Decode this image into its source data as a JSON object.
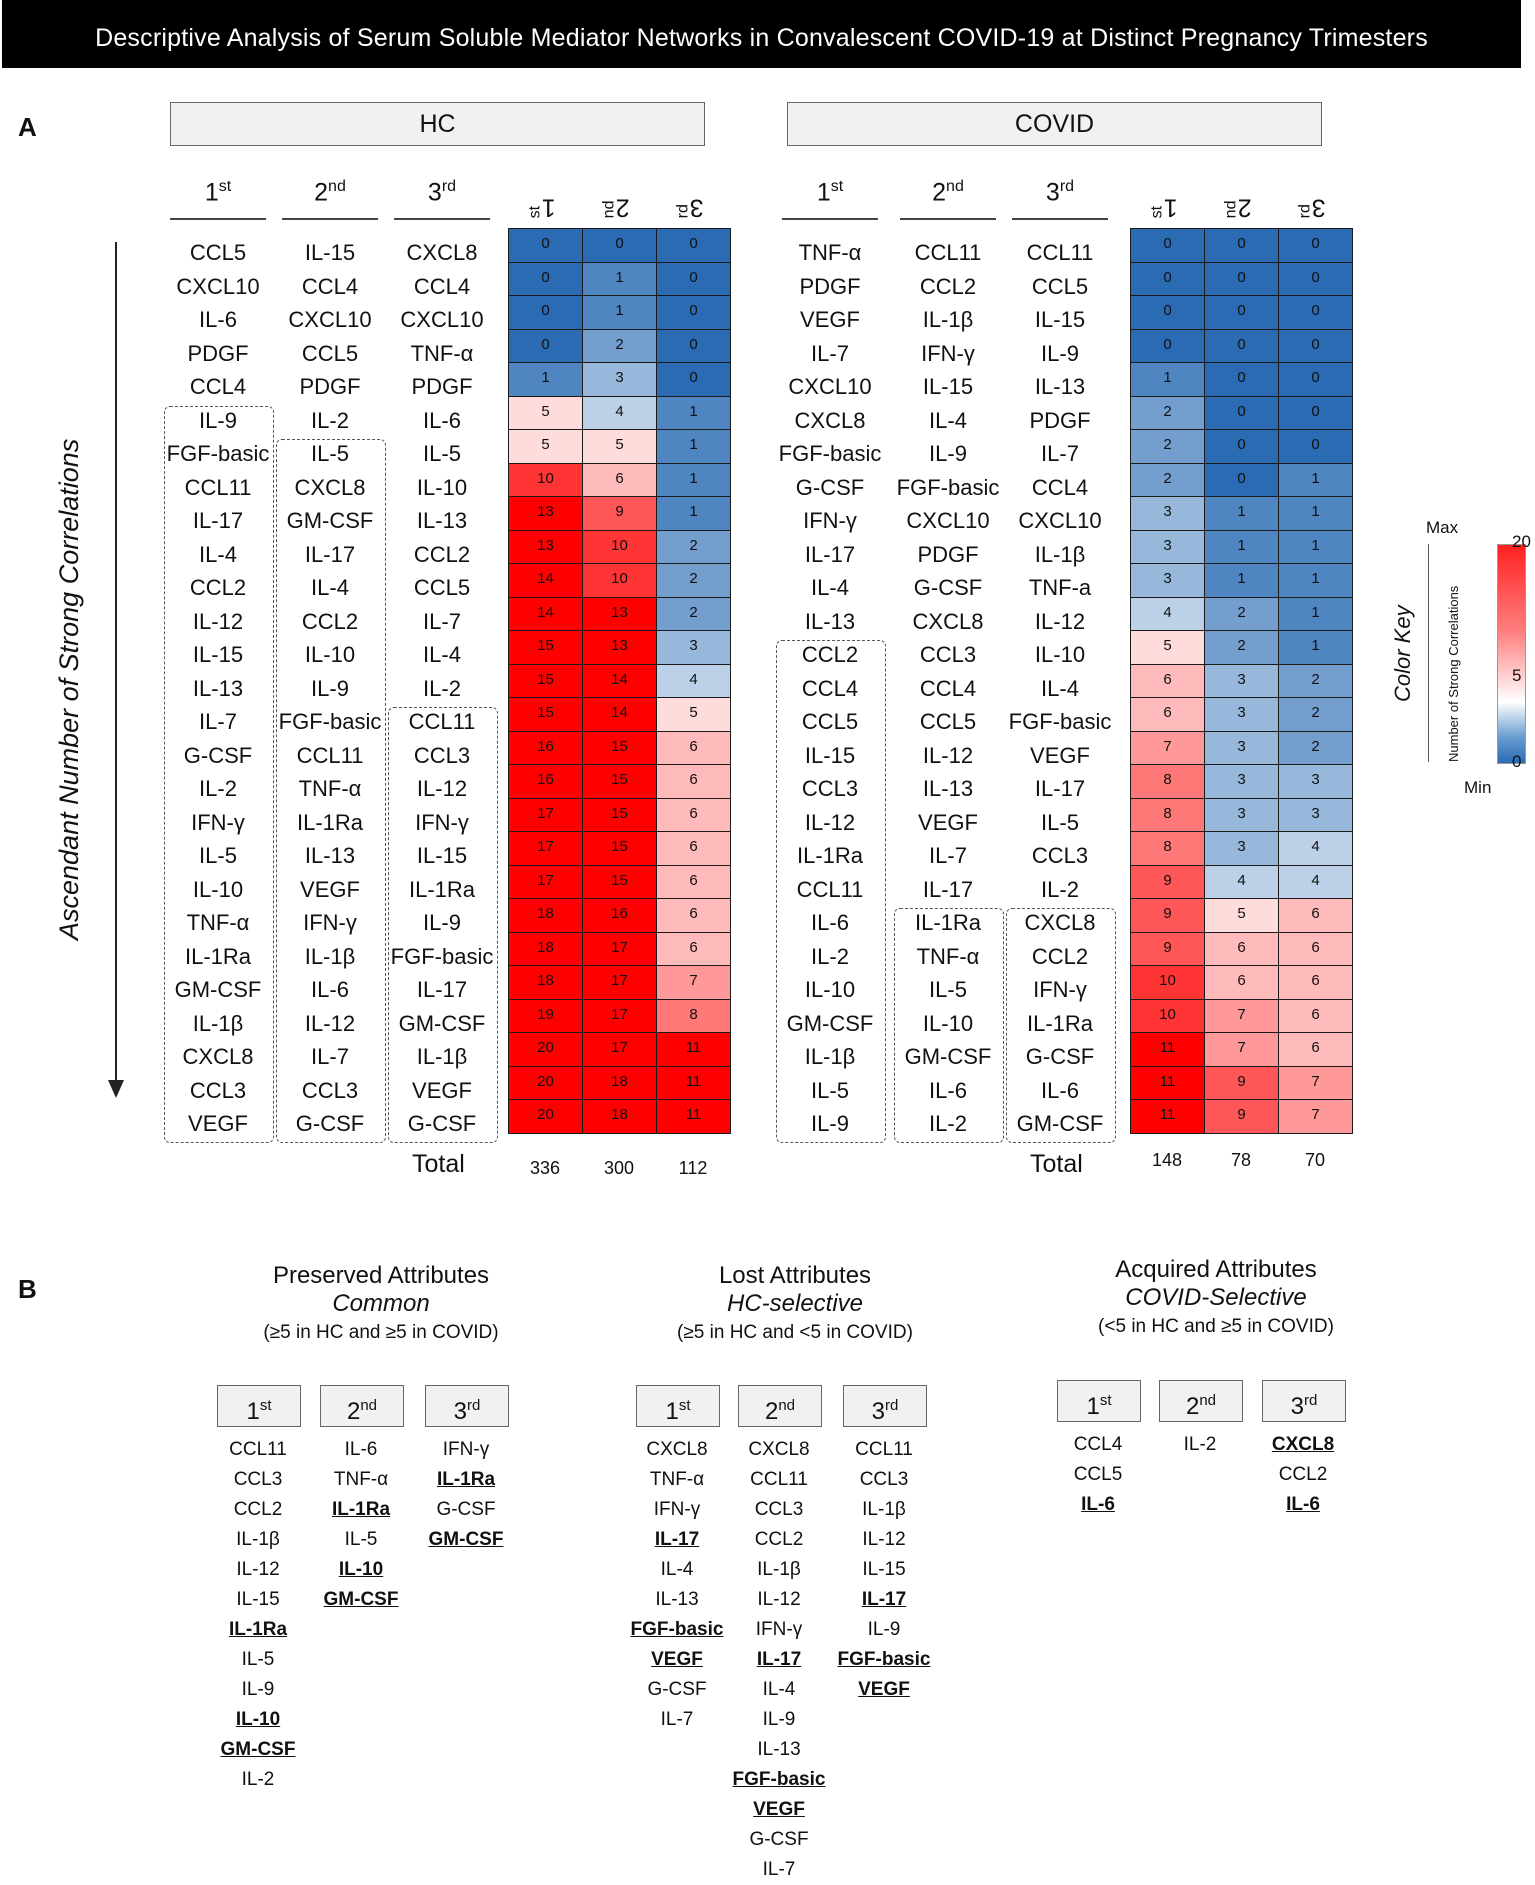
{
  "title": "Descriptive Analysis of Serum Soluble Mediator Networks  in Convalescent COVID-19 at Distinct Pregnancy Trimesters",
  "panel_a": {
    "letter": "A",
    "y_axis_label": "Ascendant Number of Strong Correlations",
    "hc": {
      "label": "HC",
      "trimesters": [
        {
          "ord": "1",
          "sup": "st"
        },
        {
          "ord": "2",
          "sup": "nd"
        },
        {
          "ord": "3",
          "sup": "rd"
        }
      ],
      "col1": [
        "CCL5",
        "CXCL10",
        "IL-6",
        "PDGF",
        "CCL4",
        "IL-9",
        "FGF-basic",
        "CCL11",
        "IL-17",
        "IL-4",
        "CCL2",
        "IL-12",
        "IL-15",
        "IL-13",
        "IL-7",
        "G-CSF",
        "IL-2",
        "IFN-γ",
        "IL-5",
        "IL-10",
        "TNF-α",
        "IL-1Ra",
        "GM-CSF",
        "IL-1β",
        "CXCL8",
        "CCL3",
        "VEGF"
      ],
      "col2": [
        "IL-15",
        "CCL4",
        "CXCL10",
        "CCL5",
        "PDGF",
        "IL-2",
        "IL-5",
        "CXCL8",
        "GM-CSF",
        "IL-17",
        "IL-4",
        "CCL2",
        "IL-10",
        "IL-9",
        "FGF-basic",
        "CCL11",
        "TNF-α",
        "IL-1Ra",
        "IL-13",
        "VEGF",
        "IFN-γ",
        "IL-1β",
        "IL-6",
        "IL-12",
        "IL-7",
        "CCL3",
        "G-CSF"
      ],
      "col3": [
        "CXCL8",
        "CCL4",
        "CXCL10",
        "TNF-α",
        "PDGF",
        "IL-6",
        "IL-5",
        "IL-10",
        "IL-13",
        "CCL2",
        "CCL5",
        "IL-7",
        "IL-4",
        "IL-2",
        "CCL11",
        "CCL3",
        "IL-12",
        "IFN-γ",
        "IL-15",
        "IL-1Ra",
        "IL-9",
        "FGF-basic",
        "IL-17",
        "GM-CSF",
        "IL-1β",
        "VEGF",
        "G-CSF"
      ],
      "heat1": [
        0,
        0,
        0,
        0,
        1,
        5,
        5,
        10,
        13,
        13,
        14,
        14,
        15,
        15,
        15,
        16,
        16,
        17,
        17,
        17,
        18,
        18,
        18,
        19,
        20,
        20,
        20
      ],
      "heat2": [
        0,
        1,
        1,
        2,
        3,
        4,
        5,
        6,
        9,
        10,
        10,
        13,
        13,
        14,
        14,
        15,
        15,
        15,
        15,
        15,
        16,
        17,
        17,
        17,
        17,
        18,
        18
      ],
      "heat3": [
        0,
        0,
        0,
        0,
        0,
        1,
        1,
        1,
        1,
        2,
        2,
        2,
        3,
        4,
        5,
        6,
        6,
        6,
        6,
        6,
        6,
        6,
        7,
        8,
        11,
        11,
        11
      ],
      "total_label": "Total",
      "totals": [
        "336",
        "300",
        "112"
      ]
    },
    "covid": {
      "label": "COVID",
      "trimesters": [
        {
          "ord": "1",
          "sup": "st"
        },
        {
          "ord": "2",
          "sup": "nd"
        },
        {
          "ord": "3",
          "sup": "rd"
        }
      ],
      "col1": [
        "TNF-α",
        "PDGF",
        "VEGF",
        "IL-7",
        "CXCL10",
        "CXCL8",
        "FGF-basic",
        "G-CSF",
        "IFN-γ",
        "IL-17",
        "IL-4",
        "IL-13",
        "CCL2",
        "CCL4",
        "CCL5",
        "IL-15",
        "CCL3",
        "IL-12",
        "IL-1Ra",
        "CCL11",
        "IL-6",
        "IL-2",
        "IL-10",
        "GM-CSF",
        "IL-1β",
        "IL-5",
        "IL-9"
      ],
      "col2": [
        "CCL11",
        "CCL2",
        "IL-1β",
        "IFN-γ",
        "IL-15",
        "IL-4",
        "IL-9",
        "FGF-basic",
        "CXCL10",
        "PDGF",
        "G-CSF",
        "CXCL8",
        "CCL3",
        "CCL4",
        "CCL5",
        "IL-12",
        "IL-13",
        "VEGF",
        "IL-7",
        "IL-17",
        "IL-1Ra",
        "TNF-α",
        "IL-5",
        "IL-10",
        "GM-CSF",
        "IL-6",
        "IL-2"
      ],
      "col3": [
        "CCL11",
        "CCL5",
        "IL-15",
        "IL-9",
        "IL-13",
        "PDGF",
        "IL-7",
        "CCL4",
        "CXCL10",
        "IL-1β",
        "TNF-a",
        "IL-12",
        "IL-10",
        "IL-4",
        "FGF-basic",
        "VEGF",
        "IL-17",
        "IL-5",
        "CCL3",
        "IL-2",
        "CXCL8",
        "CCL2",
        "IFN-γ",
        "IL-1Ra",
        "G-CSF",
        "IL-6",
        "GM-CSF"
      ],
      "heat1": [
        0,
        0,
        0,
        0,
        1,
        2,
        2,
        2,
        3,
        3,
        3,
        4,
        5,
        6,
        6,
        7,
        8,
        8,
        8,
        9,
        9,
        9,
        10,
        10,
        11,
        11,
        11
      ],
      "heat2": [
        0,
        0,
        0,
        0,
        0,
        0,
        0,
        0,
        1,
        1,
        1,
        2,
        2,
        3,
        3,
        3,
        3,
        3,
        3,
        4,
        5,
        6,
        6,
        7,
        7,
        9,
        9
      ],
      "heat3": [
        0,
        0,
        0,
        0,
        0,
        0,
        0,
        1,
        1,
        1,
        1,
        1,
        1,
        2,
        2,
        2,
        3,
        3,
        4,
        4,
        6,
        6,
        6,
        6,
        6,
        7,
        7
      ],
      "total_label": "Total",
      "totals": [
        "148",
        "78",
        "70"
      ]
    },
    "color_key": {
      "title": "Color Key",
      "axis_label": "Number of Strong Correlations",
      "max_label": "Max",
      "min_label": "Min",
      "tick_top": "20",
      "tick_mid": "5",
      "tick_bottom": "0",
      "color_max": "#ff0000",
      "color_mid": "#ffffff",
      "color_min": "#2a6bb4"
    }
  },
  "panel_b": {
    "letter": "B",
    "groups": [
      {
        "title": "Preserved Attributes",
        "subtitle": "Common",
        "criteria": "(≥5 in HC and ≥5 in COVID)",
        "columns": [
          {
            "ord": "1",
            "sup": "st",
            "items": [
              {
                "t": "CCL11",
                "b": false
              },
              {
                "t": "CCL3",
                "b": false
              },
              {
                "t": "CCL2",
                "b": false
              },
              {
                "t": "IL-1β",
                "b": false
              },
              {
                "t": "IL-12",
                "b": false
              },
              {
                "t": "IL-15",
                "b": false
              },
              {
                "t": "IL-1Ra",
                "b": true
              },
              {
                "t": "IL-5",
                "b": false
              },
              {
                "t": "IL-9",
                "b": false
              },
              {
                "t": "IL-10",
                "b": true
              },
              {
                "t": "GM-CSF",
                "b": true
              },
              {
                "t": "IL-2",
                "b": false
              }
            ]
          },
          {
            "ord": "2",
            "sup": "nd",
            "items": [
              {
                "t": "IL-6",
                "b": false
              },
              {
                "t": "TNF-α",
                "b": false
              },
              {
                "t": "IL-1Ra",
                "b": true
              },
              {
                "t": "IL-5",
                "b": false
              },
              {
                "t": "IL-10",
                "b": true
              },
              {
                "t": "GM-CSF",
                "b": true
              }
            ]
          },
          {
            "ord": "3",
            "sup": "rd",
            "items": [
              {
                "t": "IFN-γ",
                "b": false
              },
              {
                "t": "IL-1Ra",
                "b": true
              },
              {
                "t": "G-CSF",
                "b": false
              },
              {
                "t": "GM-CSF",
                "b": true
              }
            ]
          }
        ]
      },
      {
        "title": "Lost Attributes",
        "subtitle": "HC-selective",
        "criteria": "(≥5 in HC and <5 in COVID)",
        "columns": [
          {
            "ord": "1",
            "sup": "st",
            "items": [
              {
                "t": "CXCL8",
                "b": false
              },
              {
                "t": "TNF-α",
                "b": false
              },
              {
                "t": "IFN-γ",
                "b": false
              },
              {
                "t": "IL-17",
                "b": true
              },
              {
                "t": "IL-4",
                "b": false
              },
              {
                "t": "IL-13",
                "b": false
              },
              {
                "t": "FGF-basic",
                "b": true
              },
              {
                "t": "VEGF",
                "b": true
              },
              {
                "t": "G-CSF",
                "b": false
              },
              {
                "t": "IL-7",
                "b": false
              }
            ]
          },
          {
            "ord": "2",
            "sup": "nd",
            "items": [
              {
                "t": "CXCL8",
                "b": false
              },
              {
                "t": "CCL11",
                "b": false
              },
              {
                "t": "CCL3",
                "b": false
              },
              {
                "t": "CCL2",
                "b": false
              },
              {
                "t": "IL-1β",
                "b": false
              },
              {
                "t": "IL-12",
                "b": false
              },
              {
                "t": "IFN-γ",
                "b": false
              },
              {
                "t": "IL-17",
                "b": true
              },
              {
                "t": "IL-4",
                "b": false
              },
              {
                "t": "IL-9",
                "b": false
              },
              {
                "t": "IL-13",
                "b": false
              },
              {
                "t": "FGF-basic",
                "b": true
              },
              {
                "t": "VEGF",
                "b": true
              },
              {
                "t": "G-CSF",
                "b": false
              },
              {
                "t": "IL-7",
                "b": false
              }
            ]
          },
          {
            "ord": "3",
            "sup": "rd",
            "items": [
              {
                "t": "CCL11",
                "b": false
              },
              {
                "t": "CCL3",
                "b": false
              },
              {
                "t": "IL-1β",
                "b": false
              },
              {
                "t": "IL-12",
                "b": false
              },
              {
                "t": "IL-15",
                "b": false
              },
              {
                "t": "IL-17",
                "b": true
              },
              {
                "t": "IL-9",
                "b": false
              },
              {
                "t": "FGF-basic",
                "b": true
              },
              {
                "t": "VEGF",
                "b": true
              }
            ]
          }
        ]
      },
      {
        "title": "Acquired Attributes",
        "subtitle": "COVID-Selective",
        "criteria": "(<5 in HC and ≥5 in COVID)",
        "columns": [
          {
            "ord": "1",
            "sup": "st",
            "items": [
              {
                "t": "CCL4",
                "b": false
              },
              {
                "t": "CCL5",
                "b": false
              },
              {
                "t": "IL-6",
                "b": true
              }
            ]
          },
          {
            "ord": "2",
            "sup": "nd",
            "items": [
              {
                "t": "IL-2",
                "b": false
              }
            ]
          },
          {
            "ord": "3",
            "sup": "rd",
            "items": [
              {
                "t": "CXCL8",
                "b": true
              },
              {
                "t": "CCL2",
                "b": false
              },
              {
                "t": "IL-6",
                "b": true
              }
            ]
          }
        ]
      }
    ]
  }
}
